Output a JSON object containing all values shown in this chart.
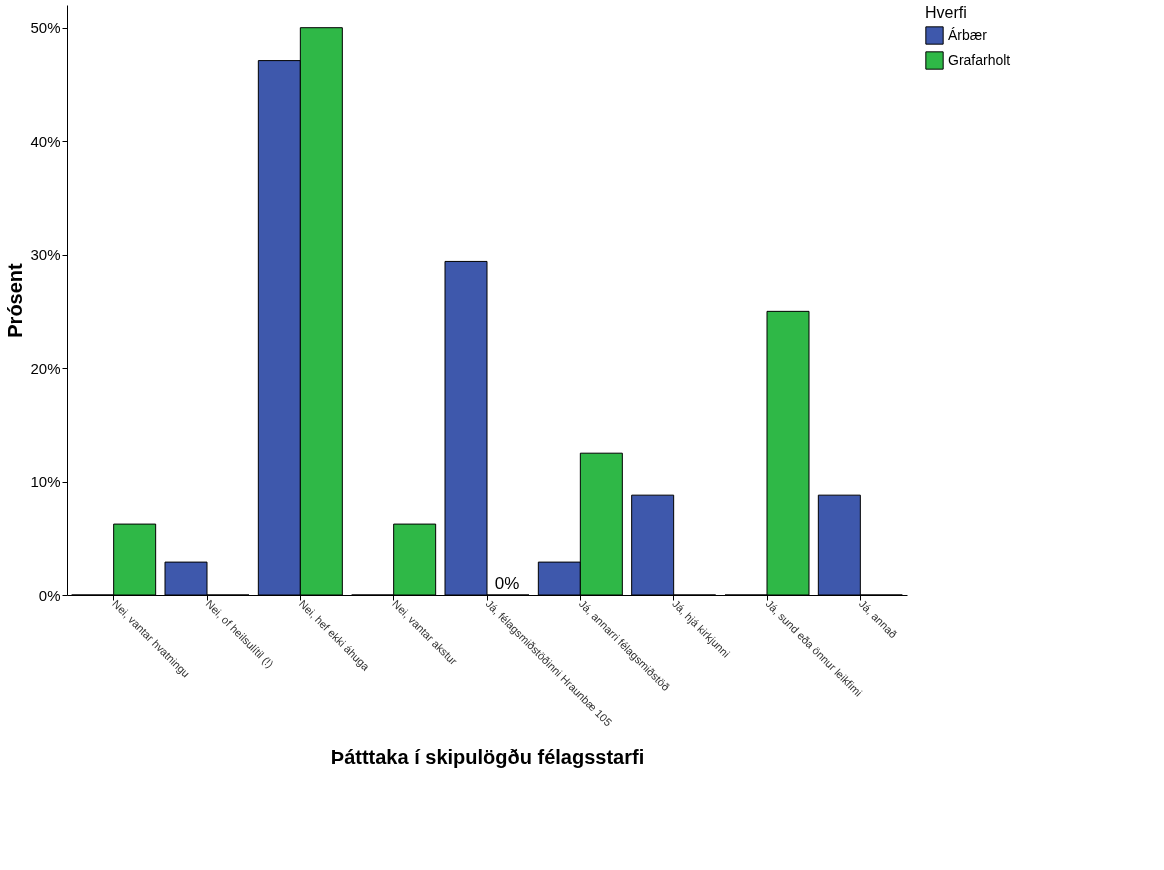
{
  "chart_data": {
    "type": "bar",
    "xlabel": "Þátttaka í skipulögðu félagsstarfi",
    "ylabel": "Prósent",
    "legend_title": "Hverfi",
    "categories": [
      "Nei, vantar hvatningu",
      "Nei, of heilsulítil (!)",
      "Nei, hef ekki áhuga",
      "Nei, vantar akstur",
      "Já, félagsmiðstöðinni Hraunbæ 105",
      "Já, annarri félagsmiðstöð",
      "Já, hjá kirkjunni",
      "Já, sund eða önnur leikfimi",
      "Já, annað"
    ],
    "series": [
      {
        "name": "Árbær",
        "color": "#3e58ac",
        "values": [
          0,
          2.9,
          47.1,
          0,
          29.4,
          2.9,
          8.8,
          0,
          8.8
        ]
      },
      {
        "name": "Grafarholt",
        "color": "#2fb847",
        "values": [
          6.25,
          0,
          50,
          6.25,
          0,
          12.5,
          0,
          25,
          0
        ]
      }
    ],
    "ylim": [
      0,
      52
    ],
    "yticks": [
      {
        "value": 0,
        "label": "0%"
      },
      {
        "value": 10,
        "label": "10%"
      },
      {
        "value": 20,
        "label": "20%"
      },
      {
        "value": 30,
        "label": "30%"
      },
      {
        "value": 40,
        "label": "40%"
      },
      {
        "value": 50,
        "label": "50%"
      }
    ],
    "annotations": [
      {
        "text": "0%",
        "x": "Já, félagsmiðstöðinni Hraunbæ 105",
        "y": 0
      }
    ],
    "legend": "top right",
    "grid": false
  }
}
